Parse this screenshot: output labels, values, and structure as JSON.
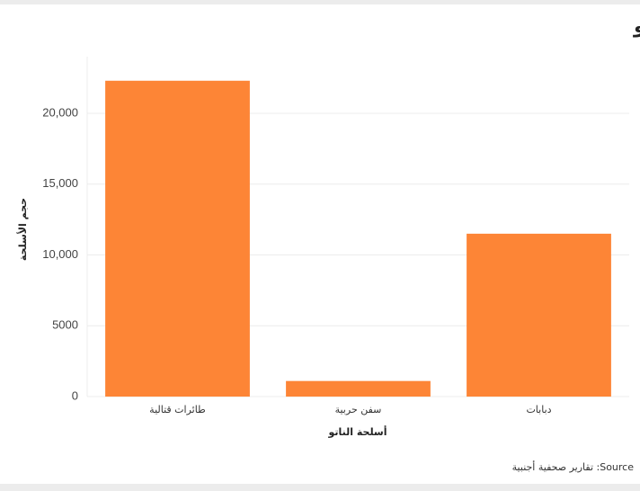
{
  "chart_data": {
    "type": "bar",
    "title": "حجم التسليح في الناتو",
    "categories": [
      "طائرات قتالية",
      "سفن حربية",
      "دبابات"
    ],
    "values": [
      22300,
      1100,
      11500
    ],
    "color": "#fd8536",
    "xlabel": "أسلحة الناتو",
    "ylabel": "حجم الأسلحة",
    "source": "Source: تقارير صحفية أجنبية",
    "ylim": [
      0,
      24000
    ],
    "yticks": [
      0,
      5000,
      {
        "value": 10000,
        "label": "10,000"
      },
      {
        "value": 15000,
        "label": "15,000"
      },
      {
        "value": 20000,
        "label": "20,000"
      }
    ],
    "grid": true
  }
}
